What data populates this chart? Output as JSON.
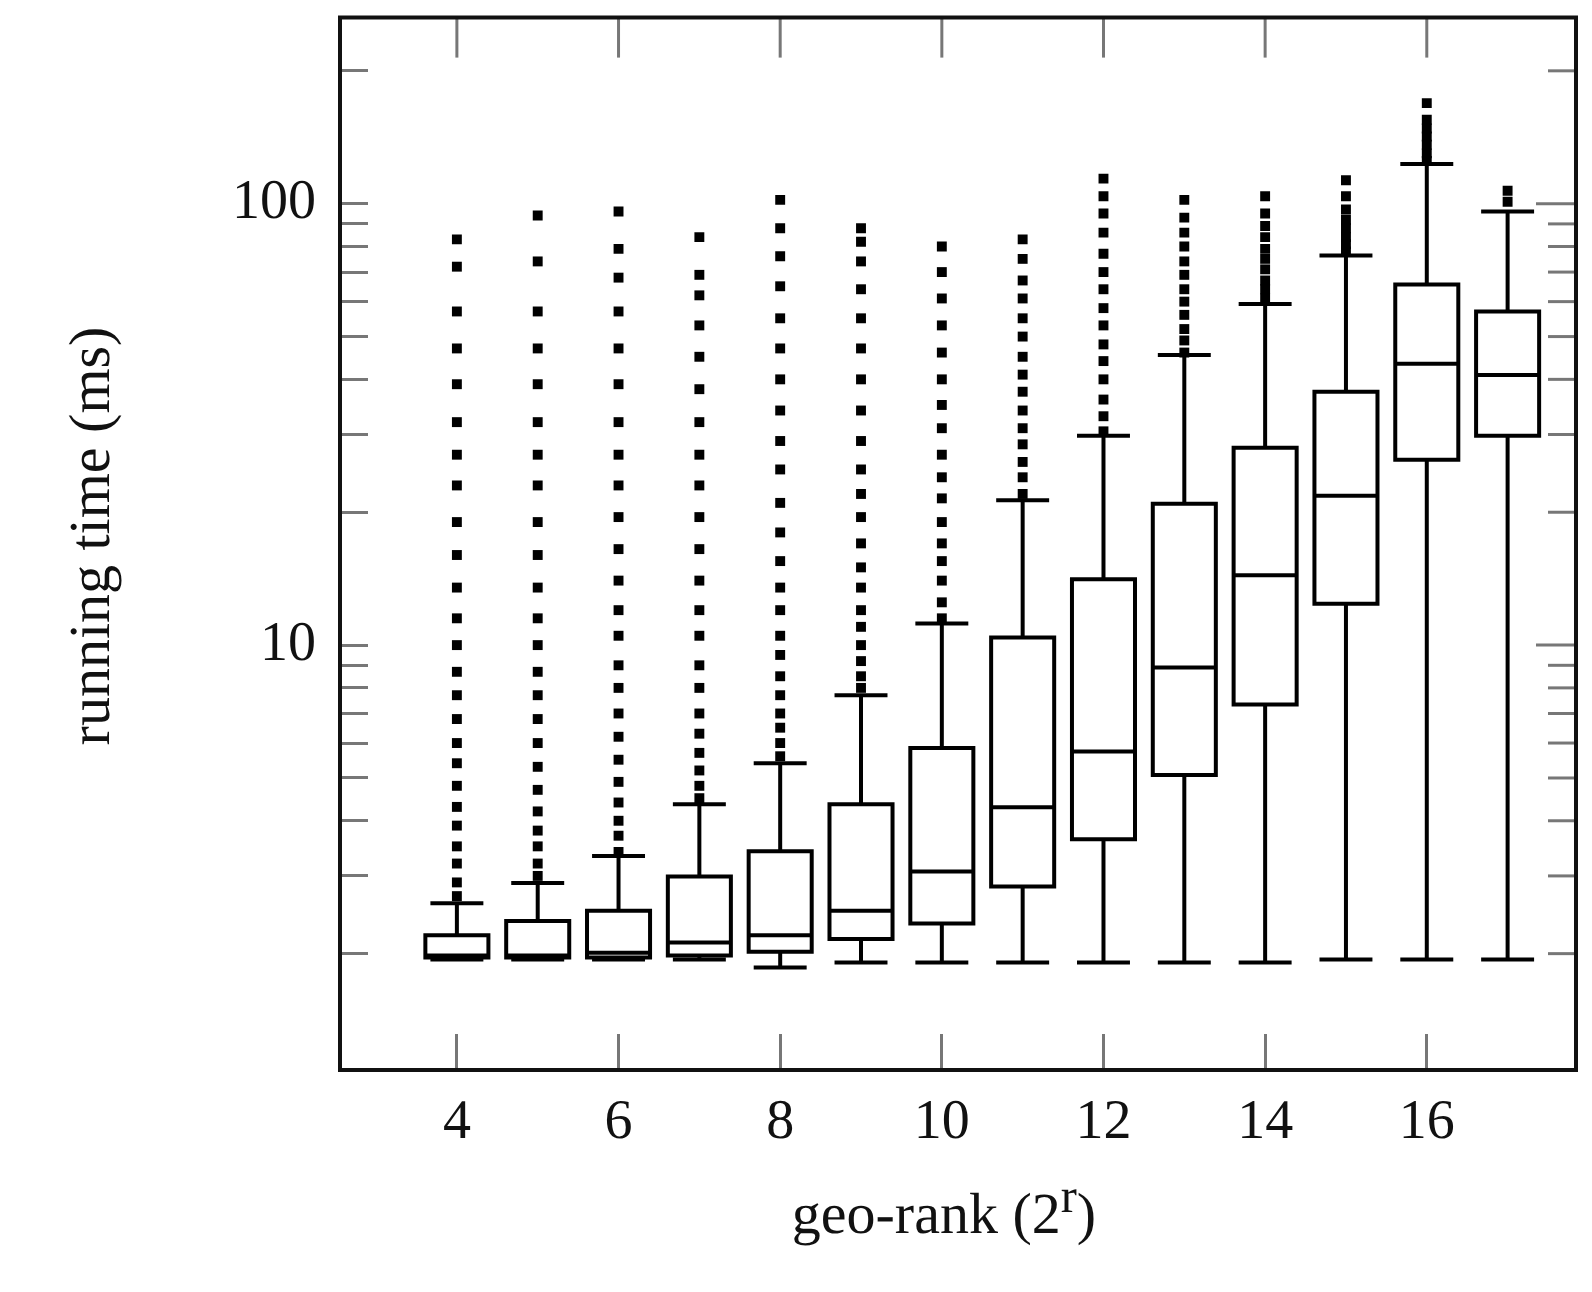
{
  "chart_data": {
    "type": "box",
    "xlabel": "geo-rank (2$^{r}$)",
    "ylabel": "running time (ms)",
    "color": "#ffffff",
    "categories": [
      "4",
      null,
      "6",
      null,
      "8",
      null,
      "10",
      null,
      "12",
      null,
      "14",
      null,
      "16",
      null
    ],
    "log": "y",
    "ylim": [
      1.09,
      264
    ],
    "yticks": [
      {
        "value": 2,
        "label": null
      },
      {
        "value": 3,
        "label": null
      },
      {
        "value": 4,
        "label": null
      },
      {
        "value": 5,
        "label": null
      },
      {
        "value": 6,
        "label": null
      },
      {
        "value": 7,
        "label": null
      },
      {
        "value": 8,
        "label": null
      },
      {
        "value": 9,
        "label": null
      },
      10,
      {
        "value": 20,
        "label": null
      },
      {
        "value": 30,
        "label": null
      },
      {
        "value": 40,
        "label": null
      },
      {
        "value": 50,
        "label": null
      },
      {
        "value": 60,
        "label": null
      },
      {
        "value": 70,
        "label": null
      },
      {
        "value": 80,
        "label": null
      },
      {
        "value": 90,
        "label": null
      },
      100,
      {
        "value": 200,
        "label": null
      }
    ],
    "boxes": [
      {
        "low": 1.94,
        "q1": 1.96,
        "median": 1.98,
        "q3": 2.2,
        "high": 2.6,
        "outliers": [
          2.7,
          2.9,
          3.2,
          3.5,
          3.9,
          4.3,
          4.8,
          5.4,
          6,
          6.8,
          7.7,
          8.7,
          10,
          11.5,
          13.5,
          16,
          19,
          23,
          27,
          32,
          39,
          47,
          57,
          72,
          83
        ]
      },
      {
        "low": 1.94,
        "q1": 1.96,
        "median": 1.98,
        "q3": 2.37,
        "high": 2.89,
        "outliers": [
          3,
          3.2,
          3.5,
          3.8,
          4.2,
          4.7,
          5.3,
          6,
          6.8,
          7.7,
          8.7,
          10,
          11.5,
          13.5,
          16,
          19,
          23,
          27,
          32,
          39,
          47,
          57,
          74,
          94
        ]
      },
      {
        "low": 1.94,
        "q1": 1.96,
        "median": 2.01,
        "q3": 2.5,
        "high": 3.33,
        "outliers": [
          3.4,
          3.7,
          4,
          4.4,
          4.9,
          5.5,
          6.2,
          7,
          8,
          9,
          10.5,
          12,
          14,
          16.5,
          19.5,
          23,
          27,
          32,
          39,
          47,
          57,
          68,
          79,
          96
        ]
      },
      {
        "low": 1.94,
        "q1": 1.98,
        "median": 2.12,
        "q3": 2.99,
        "high": 4.36,
        "outliers": [
          4.5,
          4.8,
          5.2,
          5.7,
          6.3,
          7,
          8,
          9,
          10.5,
          12,
          14,
          16.5,
          19.5,
          23,
          27,
          32,
          38,
          45,
          53,
          62,
          69,
          84
        ]
      },
      {
        "low": 1.86,
        "q1": 2.02,
        "median": 2.2,
        "q3": 3.41,
        "high": 5.4,
        "outliers": [
          5.6,
          6,
          6.5,
          7,
          7.7,
          8.5,
          9.5,
          10.5,
          12,
          13.5,
          15.5,
          18,
          21,
          25,
          29,
          34,
          40,
          47,
          55,
          65,
          76,
          88,
          102
        ]
      },
      {
        "low": 1.91,
        "q1": 2.16,
        "median": 2.5,
        "q3": 4.36,
        "high": 7.7,
        "outliers": [
          8,
          8.5,
          9.2,
          10,
          11,
          12,
          13.5,
          15,
          17,
          19.5,
          22,
          25,
          29,
          34,
          40,
          47,
          55,
          64,
          74,
          82,
          88
        ]
      },
      {
        "low": 1.91,
        "q1": 2.34,
        "median": 3.07,
        "q3": 5.85,
        "high": 11.2,
        "outliers": [
          11.5,
          12.5,
          14,
          15.5,
          17,
          19,
          21.5,
          24,
          27,
          31,
          35,
          40,
          46,
          53,
          61,
          70,
          80
        ]
      },
      {
        "low": 1.91,
        "q1": 2.84,
        "median": 4.29,
        "q3": 10.4,
        "high": 21.3,
        "outliers": [
          22,
          24,
          26,
          28.5,
          31,
          34,
          37.5,
          41,
          45,
          50,
          55,
          61,
          67,
          75,
          83
        ]
      },
      {
        "low": 1.91,
        "q1": 3.63,
        "median": 5.74,
        "q3": 14.1,
        "high": 29.8,
        "outliers": [
          30.5,
          33,
          36,
          40,
          44,
          48,
          53,
          58,
          64,
          70,
          77,
          86,
          95,
          104,
          114
        ]
      },
      {
        "low": 1.91,
        "q1": 5.08,
        "median": 8.9,
        "q3": 20.9,
        "high": 45.4,
        "outliers": [
          46,
          49,
          52,
          56,
          60,
          64,
          69,
          74,
          80,
          86,
          93,
          102
        ]
      },
      {
        "low": 1.91,
        "q1": 7.34,
        "median": 14.4,
        "q3": 28,
        "high": 59.3,
        "outliers": [
          61,
          64,
          67,
          71,
          75,
          79,
          84,
          89,
          95,
          104
        ]
      },
      {
        "low": 1.94,
        "q1": 12.4,
        "median": 21.8,
        "q3": 37.5,
        "high": 76.3,
        "outliers": [
          78,
          81,
          84,
          88,
          92,
          97,
          104,
          113
        ]
      },
      {
        "low": 1.94,
        "q1": 26.3,
        "median": 43.4,
        "q3": 65.6,
        "high": 123,
        "outliers": [
          125,
          130,
          136,
          142,
          148,
          155,
          169
        ]
      },
      {
        "low": 1.94,
        "q1": 29.8,
        "median": 40.9,
        "q3": 57,
        "high": 96,
        "outliers": [
          101,
          107
        ]
      }
    ]
  }
}
